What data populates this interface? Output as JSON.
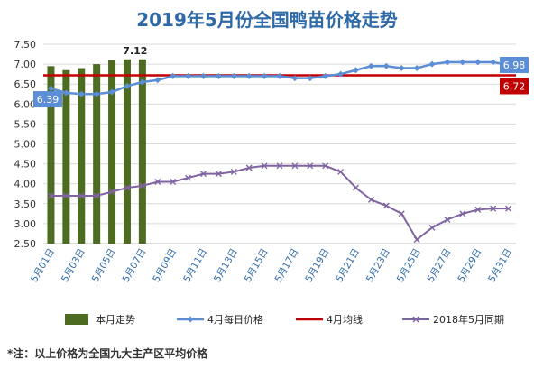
{
  "chart_data": {
    "type": "line",
    "title": "2019年5月份全国鸭苗价格走势",
    "footnote": "*注：以上价格为全国九大主产区平均价格",
    "ylim": [
      2.5,
      7.5
    ],
    "y_ticks": [
      "7.50",
      "7.00",
      "6.50",
      "6.00",
      "5.50",
      "5.00",
      "4.50",
      "4.00",
      "3.50",
      "3.00",
      "2.50"
    ],
    "x_labels": [
      "5月01日",
      "5月03日",
      "5月05日",
      "5月07日",
      "5月09日",
      "5月11日",
      "5月13日",
      "5月15日",
      "5月17日",
      "5月19日",
      "5月21日",
      "5月23日",
      "5月25日",
      "5月27日",
      "5月29日",
      "5月31日"
    ],
    "colors": {
      "bar": "#4e6b22",
      "april_daily": "#5b8ed6",
      "april_avg": "#c00000",
      "last_year": "#8064a2",
      "title": "#2f6aa8"
    },
    "series": [
      {
        "name": "本月走势",
        "type": "bar",
        "values": [
          6.95,
          6.85,
          6.9,
          7.0,
          7.1,
          7.12,
          7.12
        ]
      },
      {
        "name": "4月每日价格",
        "type": "line",
        "values": [
          6.39,
          6.28,
          6.25,
          6.25,
          6.3,
          6.45,
          6.55,
          6.6,
          6.7,
          6.7,
          6.7,
          6.7,
          6.7,
          6.7,
          6.7,
          6.7,
          6.65,
          6.65,
          6.7,
          6.75,
          6.85,
          6.95,
          6.95,
          6.9,
          6.9,
          7.0,
          7.05,
          7.05,
          7.05,
          7.05,
          6.98
        ]
      },
      {
        "name": "4月均线",
        "type": "line",
        "values": [
          6.72
        ]
      },
      {
        "name": "2018年5月同期",
        "type": "line",
        "values": [
          3.7,
          3.7,
          3.7,
          3.7,
          3.8,
          3.9,
          3.95,
          4.05,
          4.05,
          4.15,
          4.25,
          4.25,
          4.3,
          4.4,
          4.45,
          4.45,
          4.45,
          4.45,
          4.45,
          4.3,
          3.9,
          3.6,
          3.45,
          3.25,
          2.6,
          2.9,
          3.1,
          3.25,
          3.35,
          3.38,
          3.38
        ]
      }
    ],
    "data_labels": {
      "bar_max": "7.12",
      "april_start": "6.39",
      "april_end": "6.98",
      "april_avg": "6.72"
    },
    "legend_position": "bottom"
  }
}
